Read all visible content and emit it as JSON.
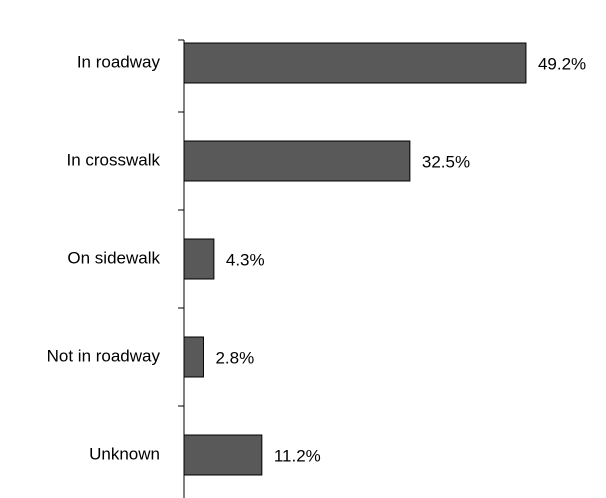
{
  "chart_data": {
    "type": "hbar",
    "categories": [
      "In roadway",
      "In crosswalk",
      "On sidewalk",
      "Not in roadway",
      "Unknown"
    ],
    "values": [
      49.2,
      32.5,
      4.3,
      2.8,
      11.2
    ],
    "value_labels": [
      "49.2%",
      "32.5%",
      "4.3%",
      "2.8%",
      "11.2%"
    ],
    "color": "#595959"
  }
}
